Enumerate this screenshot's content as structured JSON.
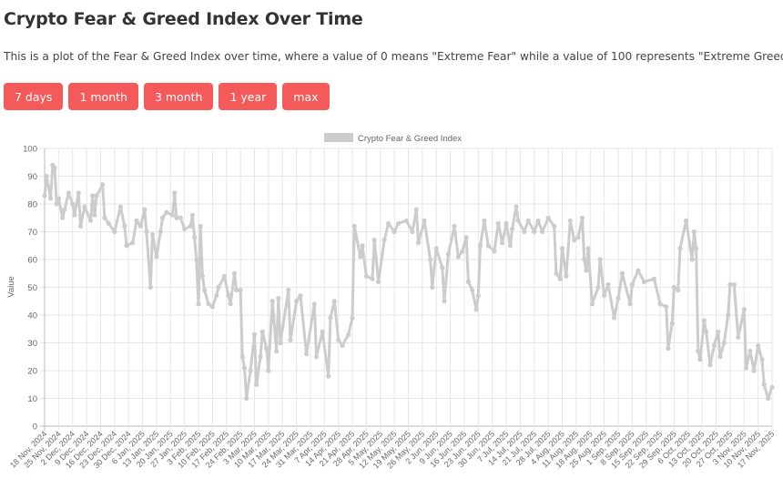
{
  "page": {
    "title": "Crypto Fear & Greed Index Over Time",
    "description": "This is a plot of the Fear & Greed Index over time, where a value of 0 means \"Extreme Fear\" while a value of 100 represents \"Extreme Greed\".",
    "buttons": [
      "7 days",
      "1 month",
      "3 month",
      "1 year",
      "max"
    ],
    "button_color": "#f55a5a"
  },
  "chart_data": {
    "type": "line",
    "legend": {
      "label": "Crypto Fear & Greed Index",
      "position": "top"
    },
    "ylabel": "Value",
    "xlabel": "",
    "ylim": [
      0,
      100
    ],
    "yticks": [
      0,
      10,
      20,
      30,
      40,
      50,
      60,
      70,
      80,
      90,
      100
    ],
    "grid": true,
    "line_color": "#cccccc",
    "xlim": [
      "2024-11-18",
      "2025-11-17"
    ],
    "xtick_labels": [
      "18 Nov, 2024",
      "25 Nov, 2024",
      "2 Dec, 2024",
      "9 Dec, 2024",
      "16 Dec, 2024",
      "23 Dec, 2024",
      "30 Dec, 2024",
      "6 Jan, 2025",
      "13 Jan, 2025",
      "20 Jan, 2025",
      "27 Jan, 2025",
      "3 Feb, 2025",
      "10 Feb, 2025",
      "17 Feb, 2025",
      "24 Feb, 2025",
      "3 Mar, 2025",
      "10 Mar, 2025",
      "17 Mar, 2025",
      "24 Mar, 2025",
      "31 Mar, 2025",
      "7 Apr, 2025",
      "14 Apr, 2025",
      "21 Apr, 2025",
      "28 Apr, 2025",
      "5 May, 2025",
      "12 May, 2025",
      "19 May, 2025",
      "26 May, 2025",
      "2 Jun, 2025",
      "9 Jun, 2025",
      "16 Jun, 2025",
      "23 Jun, 2025",
      "30 Jun, 2025",
      "7 Jul, 2025",
      "14 Jul, 2025",
      "21 Jul, 2025",
      "28 Jul, 2025",
      "4 Aug, 2025",
      "11 Aug, 2025",
      "18 Aug, 2025",
      "25 Aug, 2025",
      "1 Sep, 2025",
      "8 Sep, 2025",
      "15 Sep, 2025",
      "22 Sep, 2025",
      "29 Sep, 2025",
      "6 Oct, 2025",
      "13 Oct, 2025",
      "20 Oct, 2025",
      "27 Oct, 2025",
      "3 Nov, 2025",
      "10 Nov, 2025",
      "17 Nov, 2025"
    ],
    "series": [
      {
        "name": "Crypto Fear & Greed Index",
        "points": [
          [
            "2024-11-18",
            83
          ],
          [
            "2024-11-19",
            90
          ],
          [
            "2024-11-21",
            82
          ],
          [
            "2024-11-22",
            94
          ],
          [
            "2024-11-23",
            93
          ],
          [
            "2024-11-24",
            80
          ],
          [
            "2024-11-25",
            82
          ],
          [
            "2024-11-27",
            75
          ],
          [
            "2024-11-28",
            78
          ],
          [
            "2024-11-30",
            84
          ],
          [
            "2024-12-02",
            80
          ],
          [
            "2024-12-03",
            76
          ],
          [
            "2024-12-05",
            84
          ],
          [
            "2024-12-06",
            72
          ],
          [
            "2024-12-08",
            79
          ],
          [
            "2024-12-11",
            74
          ],
          [
            "2024-12-12",
            83
          ],
          [
            "2024-12-13",
            76
          ],
          [
            "2024-12-14",
            83
          ],
          [
            "2024-12-17",
            87
          ],
          [
            "2024-12-18",
            75
          ],
          [
            "2024-12-20",
            73
          ],
          [
            "2024-12-23",
            70
          ],
          [
            "2024-12-26",
            79
          ],
          [
            "2024-12-28",
            72
          ],
          [
            "2024-12-29",
            65
          ],
          [
            "2025-01-01",
            66
          ],
          [
            "2025-01-03",
            74
          ],
          [
            "2025-01-05",
            72
          ],
          [
            "2025-01-07",
            78
          ],
          [
            "2025-01-08",
            70
          ],
          [
            "2025-01-10",
            50
          ],
          [
            "2025-01-11",
            69
          ],
          [
            "2025-01-13",
            61
          ],
          [
            "2025-01-15",
            70
          ],
          [
            "2025-01-16",
            75
          ],
          [
            "2025-01-18",
            77
          ],
          [
            "2025-01-21",
            76
          ],
          [
            "2025-01-22",
            84
          ],
          [
            "2025-01-23",
            75
          ],
          [
            "2025-01-25",
            75
          ],
          [
            "2025-01-27",
            71
          ],
          [
            "2025-01-30",
            72
          ],
          [
            "2025-01-31",
            76
          ],
          [
            "2025-02-01",
            68
          ],
          [
            "2025-02-02",
            60
          ],
          [
            "2025-02-03",
            44
          ],
          [
            "2025-02-04",
            72
          ],
          [
            "2025-02-05",
            54
          ],
          [
            "2025-02-06",
            49
          ],
          [
            "2025-02-08",
            44
          ],
          [
            "2025-02-10",
            43
          ],
          [
            "2025-02-12",
            47
          ],
          [
            "2025-02-13",
            50
          ],
          [
            "2025-02-16",
            54
          ],
          [
            "2025-02-18",
            47
          ],
          [
            "2025-02-19",
            44
          ],
          [
            "2025-02-21",
            55
          ],
          [
            "2025-02-22",
            49
          ],
          [
            "2025-02-24",
            49
          ],
          [
            "2025-02-25",
            25
          ],
          [
            "2025-02-26",
            21
          ],
          [
            "2025-02-27",
            10
          ],
          [
            "2025-03-01",
            20
          ],
          [
            "2025-03-03",
            33
          ],
          [
            "2025-03-04",
            15
          ],
          [
            "2025-03-06",
            25
          ],
          [
            "2025-03-07",
            34
          ],
          [
            "2025-03-09",
            28
          ],
          [
            "2025-03-10",
            20
          ],
          [
            "2025-03-12",
            45
          ],
          [
            "2025-03-14",
            27
          ],
          [
            "2025-03-15",
            46
          ],
          [
            "2025-03-16",
            30
          ],
          [
            "2025-03-20",
            49
          ],
          [
            "2025-03-21",
            31
          ],
          [
            "2025-03-24",
            45
          ],
          [
            "2025-03-26",
            47
          ],
          [
            "2025-03-29",
            26
          ],
          [
            "2025-04-02",
            44
          ],
          [
            "2025-04-03",
            25
          ],
          [
            "2025-04-06",
            34
          ],
          [
            "2025-04-09",
            18
          ],
          [
            "2025-04-10",
            39
          ],
          [
            "2025-04-12",
            45
          ],
          [
            "2025-04-14",
            31
          ],
          [
            "2025-04-16",
            29
          ],
          [
            "2025-04-19",
            33
          ],
          [
            "2025-04-21",
            39
          ],
          [
            "2025-04-22",
            72
          ],
          [
            "2025-04-25",
            61
          ],
          [
            "2025-04-26",
            65
          ],
          [
            "2025-04-28",
            54
          ],
          [
            "2025-05-01",
            53
          ],
          [
            "2025-05-02",
            67
          ],
          [
            "2025-05-04",
            52
          ],
          [
            "2025-05-07",
            67
          ],
          [
            "2025-05-09",
            73
          ],
          [
            "2025-05-12",
            70
          ],
          [
            "2025-05-14",
            73
          ],
          [
            "2025-05-18",
            74
          ],
          [
            "2025-05-21",
            70
          ],
          [
            "2025-05-23",
            78
          ],
          [
            "2025-05-24",
            66
          ],
          [
            "2025-05-27",
            74
          ],
          [
            "2025-05-30",
            60
          ],
          [
            "2025-05-31",
            50
          ],
          [
            "2025-06-02",
            64
          ],
          [
            "2025-06-05",
            57
          ],
          [
            "2025-06-06",
            45
          ],
          [
            "2025-06-08",
            62
          ],
          [
            "2025-06-11",
            72
          ],
          [
            "2025-06-13",
            61
          ],
          [
            "2025-06-15",
            63
          ],
          [
            "2025-06-17",
            68
          ],
          [
            "2025-06-18",
            52
          ],
          [
            "2025-06-20",
            49
          ],
          [
            "2025-06-22",
            42
          ],
          [
            "2025-06-23",
            47
          ],
          [
            "2025-06-24",
            65
          ],
          [
            "2025-06-26",
            74
          ],
          [
            "2025-06-28",
            65
          ],
          [
            "2025-07-01",
            63
          ],
          [
            "2025-07-03",
            73
          ],
          [
            "2025-07-05",
            66
          ],
          [
            "2025-07-07",
            73
          ],
          [
            "2025-07-09",
            65
          ],
          [
            "2025-07-10",
            71
          ],
          [
            "2025-07-12",
            79
          ],
          [
            "2025-07-13",
            74
          ],
          [
            "2025-07-16",
            70
          ],
          [
            "2025-07-18",
            74
          ],
          [
            "2025-07-21",
            70
          ],
          [
            "2025-07-23",
            74
          ],
          [
            "2025-07-25",
            70
          ],
          [
            "2025-07-28",
            75
          ],
          [
            "2025-07-31",
            72
          ],
          [
            "2025-08-01",
            55
          ],
          [
            "2025-08-03",
            53
          ],
          [
            "2025-08-04",
            64
          ],
          [
            "2025-08-06",
            54
          ],
          [
            "2025-08-08",
            74
          ],
          [
            "2025-08-10",
            67
          ],
          [
            "2025-08-12",
            68
          ],
          [
            "2025-08-14",
            75
          ],
          [
            "2025-08-15",
            60
          ],
          [
            "2025-08-16",
            56
          ],
          [
            "2025-08-17",
            64
          ],
          [
            "2025-08-19",
            44
          ],
          [
            "2025-08-22",
            50
          ],
          [
            "2025-08-23",
            60
          ],
          [
            "2025-08-25",
            47
          ],
          [
            "2025-08-27",
            51
          ],
          [
            "2025-08-30",
            39
          ],
          [
            "2025-09-01",
            46
          ],
          [
            "2025-09-03",
            55
          ],
          [
            "2025-09-07",
            44
          ],
          [
            "2025-09-08",
            51
          ],
          [
            "2025-09-11",
            56
          ],
          [
            "2025-09-14",
            52
          ],
          [
            "2025-09-19",
            53
          ],
          [
            "2025-09-22",
            44
          ],
          [
            "2025-09-25",
            43
          ],
          [
            "2025-09-26",
            28
          ],
          [
            "2025-09-28",
            37
          ],
          [
            "2025-09-29",
            50
          ],
          [
            "2025-10-01",
            49
          ],
          [
            "2025-10-02",
            64
          ],
          [
            "2025-10-05",
            74
          ],
          [
            "2025-10-08",
            60
          ],
          [
            "2025-10-09",
            70
          ],
          [
            "2025-10-10",
            64
          ],
          [
            "2025-10-11",
            27
          ],
          [
            "2025-10-12",
            24
          ],
          [
            "2025-10-14",
            38
          ],
          [
            "2025-10-15",
            34
          ],
          [
            "2025-10-17",
            22
          ],
          [
            "2025-10-19",
            29
          ],
          [
            "2025-10-21",
            34
          ],
          [
            "2025-10-22",
            25
          ],
          [
            "2025-10-24",
            30
          ],
          [
            "2025-10-26",
            40
          ],
          [
            "2025-10-27",
            51
          ],
          [
            "2025-10-29",
            51
          ],
          [
            "2025-10-31",
            32
          ],
          [
            "2025-11-03",
            42
          ],
          [
            "2025-11-04",
            21
          ],
          [
            "2025-11-06",
            27
          ],
          [
            "2025-11-08",
            20
          ],
          [
            "2025-11-10",
            29
          ],
          [
            "2025-11-12",
            24
          ],
          [
            "2025-11-13",
            15
          ],
          [
            "2025-11-15",
            10
          ],
          [
            "2025-11-17",
            14
          ]
        ]
      }
    ]
  }
}
